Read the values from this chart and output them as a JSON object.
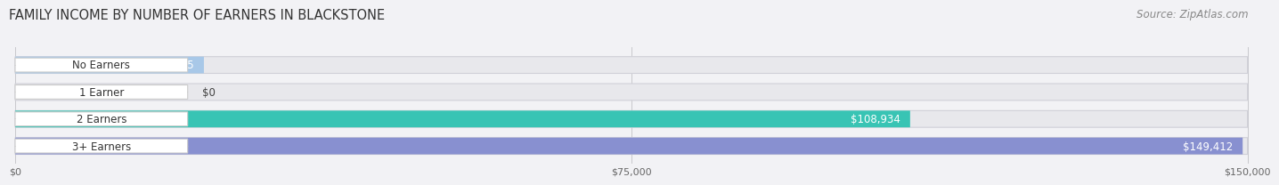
{
  "title": "FAMILY INCOME BY NUMBER OF EARNERS IN BLACKSTONE",
  "source": "Source: ZipAtlas.com",
  "categories": [
    "No Earners",
    "1 Earner",
    "2 Earners",
    "3+ Earners"
  ],
  "values": [
    22975,
    0,
    108934,
    149412
  ],
  "max_value": 150000,
  "bar_colors": [
    "#a8c8e8",
    "#c8a8cc",
    "#38c4b4",
    "#8890d0"
  ],
  "label_bg_colors": [
    "#ddeaf8",
    "#e4d4ec",
    "#2ebdb0",
    "#8090cc"
  ],
  "bar_bg_color": "#e8e8ec",
  "value_label_colors_inside": [
    "#ffffff",
    "#ffffff",
    "#ffffff",
    "#ffffff"
  ],
  "value_label_colors_outside": [
    "#444444",
    "#444444",
    "#444444",
    "#444444"
  ],
  "bar_height": 0.62,
  "background_color": "#f2f2f5",
  "xticks": [
    0,
    75000,
    150000
  ],
  "xtick_labels": [
    "$0",
    "$75,000",
    "$150,000"
  ],
  "title_fontsize": 10.5,
  "source_fontsize": 8.5,
  "label_fontsize": 8.5,
  "value_fontsize": 8.5
}
